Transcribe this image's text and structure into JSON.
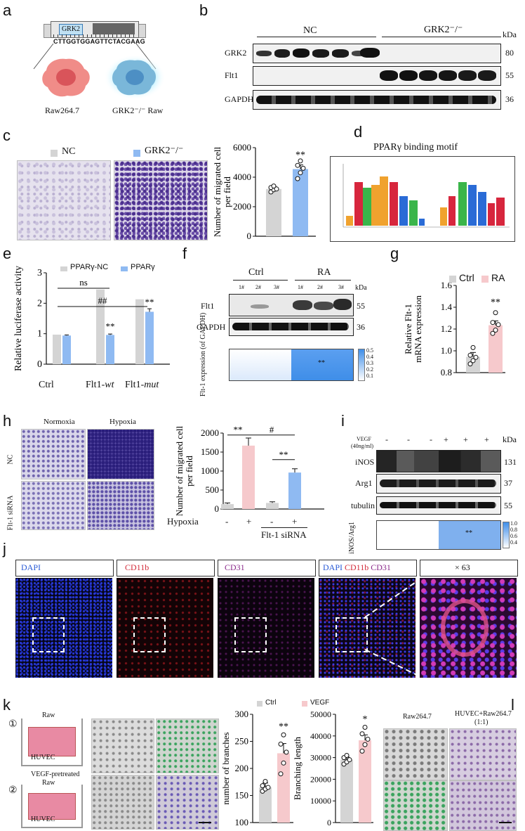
{
  "panels": {
    "a": "a",
    "b": "b",
    "c": "c",
    "d": "d",
    "e": "e",
    "f": "f",
    "g": "g",
    "h": "h",
    "i": "i",
    "j": "j",
    "k": "k",
    "l": "l"
  },
  "a": {
    "gene_box": "GRK2",
    "sequence": "CTTGGTGGAGTTCTACGAAG",
    "cell1": "Raw264.7",
    "cell2": "GRK2⁻/⁻ Raw"
  },
  "b": {
    "group1": "NC",
    "group2": "GRK2⁻/⁻",
    "kda": "kDa",
    "rows": [
      {
        "label": "GRK2",
        "kda": "80"
      },
      {
        "label": "Flt1",
        "kda": "55"
      },
      {
        "label": "GAPDH",
        "kda": "36"
      }
    ]
  },
  "c": {
    "legend1": "NC",
    "legend2": "GRK2⁻/⁻",
    "ylabel_1": "Number of migrated cell",
    "ylabel_2": "per field",
    "sig": "**",
    "yticks": [
      "0",
      "2000",
      "4000",
      "6000"
    ]
  },
  "d": {
    "title": "PPARγ binding motif"
  },
  "e": {
    "legend1": "PPARγ-NC",
    "legend2": "PPARγ",
    "ylabel": "Relative luciferase activity",
    "ns": "ns",
    "hash": "##",
    "x1": "Ctrl",
    "x2": "Flt1-",
    "x2i": "wt",
    "x3": "Flt1-",
    "x3i": "mut",
    "yticks": [
      "0",
      "1",
      "2",
      "3"
    ],
    "sig1": "**",
    "sig2": "**"
  },
  "f": {
    "ctrl": "Ctrl",
    "ra": "RA",
    "kda": "kDa",
    "lanes": [
      "1#",
      "2#",
      "3#",
      "1#",
      "2#",
      "3#"
    ],
    "rows": [
      {
        "label": "Flt1",
        "kda": "55"
      },
      {
        "label": "GAPDH",
        "kda": "36"
      }
    ],
    "ylabel_1": "Flt-1 expression",
    "ylabel_2": "(of GAPDH)",
    "sig": "**",
    "scale": [
      "0.5",
      "0.4",
      "0.3",
      "0.2",
      "0.1"
    ]
  },
  "g": {
    "legend1": "Ctrl",
    "legend2": "RA",
    "ylabel_1": "Relative Flt-1",
    "ylabel_2": "mRNA expression",
    "sig": "**",
    "yticks": [
      "0.8",
      "1.0",
      "1.2",
      "1.4",
      "1.6"
    ]
  },
  "h": {
    "col1": "Normoxia",
    "col2": "Hypoxia",
    "row1": "NC",
    "row2": "Flt-1 siRNA",
    "ylabel_1": "Number of migrated cell",
    "ylabel_2": "per field",
    "yticks": [
      "0",
      "500",
      "1000",
      "1500",
      "2000"
    ],
    "hypoxia": "Hypoxia",
    "signs": [
      "-",
      "+",
      "-",
      "+"
    ],
    "sirna": "Flt-1 siRNA",
    "sig1": "**",
    "sig2": "#",
    "sig3": "**"
  },
  "i": {
    "vegf_1": "VEGF",
    "vegf_2": "(40ng/ml)",
    "signs": [
      "-",
      "-",
      "-",
      "+",
      "+",
      "+"
    ],
    "kda": "kDa",
    "rows": [
      {
        "label": "iNOS",
        "kda": "131"
      },
      {
        "label": "Arg1",
        "kda": "37"
      },
      {
        "label": "tubulin",
        "kda": "55"
      }
    ],
    "ylabel": "iNOS/Arg1",
    "sig": "**",
    "scale": [
      "1.0",
      "0.8",
      "0.6",
      "0.4"
    ]
  },
  "j": {
    "ch1": "DAPI",
    "ch2": "CD11b",
    "ch3": "CD31",
    "merge_dapi": "DAPI",
    "merge_cd11b": "CD11b",
    "merge_cd31": "CD31",
    "zoom": "× 63"
  },
  "k": {
    "step1_num": "①",
    "step1_top": "Raw",
    "step1_bottom": "HUVEC",
    "step2_num": "②",
    "step2_top": "VEGF-pretreated",
    "step2_top2": "Raw",
    "step2_bottom": "HUVEC",
    "legend1": "Ctrl",
    "legend2": "VEGF",
    "ylabel1": "number of branches",
    "ylabel2": "Branching length",
    "yticks1": [
      "100",
      "150",
      "200",
      "250",
      "300"
    ],
    "yticks2": [
      "0",
      "10000",
      "20000",
      "30000",
      "40000",
      "50000"
    ],
    "sig1": "**",
    "sig2": "*"
  },
  "l": {
    "col1": "Raw264.7",
    "col2_1": "HUVEC+Raw264.7",
    "col2_2": "(1:1)"
  },
  "colors": {
    "nc_gray": "#d4d4d4",
    "blue": "#8fbaf2",
    "pink": "#f6c9cc",
    "heat_light": "#dbe9fb",
    "heat_dark": "#3f8ee8"
  },
  "chart_data": [
    {
      "panel": "c",
      "type": "bar",
      "categories": [
        "NC",
        "GRK2⁻/⁻"
      ],
      "values": [
        3200,
        4550
      ],
      "errors": [
        150,
        280
      ],
      "points": [
        [
          3000,
          3150,
          3200,
          3300,
          3400
        ],
        [
          3900,
          4300,
          4600,
          4800,
          5100
        ]
      ],
      "ylabel": "Number of migrated cell per field",
      "ylim": [
        0,
        6000
      ],
      "annotations": [
        "**"
      ]
    },
    {
      "panel": "e",
      "type": "bar",
      "categories": [
        "Ctrl",
        "Flt1-wt",
        "Flt1-mut"
      ],
      "series": [
        {
          "name": "PPARγ-NC",
          "values": [
            0.97,
            2.45,
            2.13
          ]
        },
        {
          "name": "PPARγ",
          "values": [
            0.94,
            0.96,
            1.72
          ],
          "errors": [
            0.02,
            0.03,
            0.1
          ]
        }
      ],
      "ylabel": "Relative luciferase activity",
      "ylim": [
        0,
        3
      ],
      "annotations": [
        "ns",
        "##",
        "**",
        "**"
      ]
    },
    {
      "panel": "f",
      "type": "heatmap",
      "categories": [
        "Ctrl",
        "RA"
      ],
      "values": [
        0.1,
        0.45
      ],
      "colorbar": [
        0.1,
        0.5
      ],
      "annotations": [
        "**"
      ]
    },
    {
      "panel": "g",
      "type": "bar",
      "categories": [
        "Ctrl",
        "RA"
      ],
      "values": [
        0.945,
        1.235
      ],
      "errors": [
        0.04,
        0.04
      ],
      "points": [
        [
          0.88,
          0.91,
          0.94,
          0.96,
          1.03
        ],
        [
          1.16,
          1.19,
          1.24,
          1.26,
          1.35
        ]
      ],
      "ylabel": "Relative Flt-1 mRNA expression",
      "ylim": [
        0.8,
        1.6
      ],
      "annotations": [
        "**"
      ]
    },
    {
      "panel": "h",
      "type": "bar",
      "categories": [
        "Hypoxia - / Flt-1 siRNA -",
        "Hypoxia + / Flt-1 siRNA -",
        "Hypoxia - / Flt-1 siRNA +",
        "Hypoxia + / Flt-1 siRNA +"
      ],
      "values": [
        130,
        1670,
        160,
        960
      ],
      "errors": [
        30,
        200,
        30,
        100
      ],
      "ylabel": "Number of migrated cell per field",
      "ylim": [
        0,
        2000
      ],
      "annotations": [
        "**",
        "#",
        "**"
      ]
    },
    {
      "panel": "i",
      "type": "heatmap",
      "categories": [
        "VEGF -",
        "VEGF +"
      ],
      "values": [
        0.4,
        1.0
      ],
      "colorbar": [
        0.4,
        1.0
      ],
      "annotations": [
        "**"
      ]
    },
    {
      "panel": "k1",
      "type": "bar",
      "categories": [
        "Ctrl",
        "VEGF"
      ],
      "values": [
        165,
        228
      ],
      "errors": [
        8,
        18
      ],
      "points": [
        [
          158,
          162,
          165,
          168,
          176
        ],
        [
          190,
          210,
          230,
          245,
          262
        ]
      ],
      "ylabel": "number of branches",
      "ylim": [
        100,
        300
      ],
      "annotations": [
        "**"
      ]
    },
    {
      "panel": "k2",
      "type": "bar",
      "categories": [
        "Ctrl",
        "VEGF"
      ],
      "values": [
        29000,
        38000
      ],
      "errors": [
        1200,
        2500
      ],
      "points": [
        [
          27000,
          28000,
          29000,
          30000,
          31000
        ],
        [
          33000,
          36000,
          38500,
          41000,
          44000
        ]
      ],
      "ylabel": "Branching length",
      "ylim": [
        0,
        50000
      ],
      "annotations": [
        "*"
      ]
    }
  ]
}
